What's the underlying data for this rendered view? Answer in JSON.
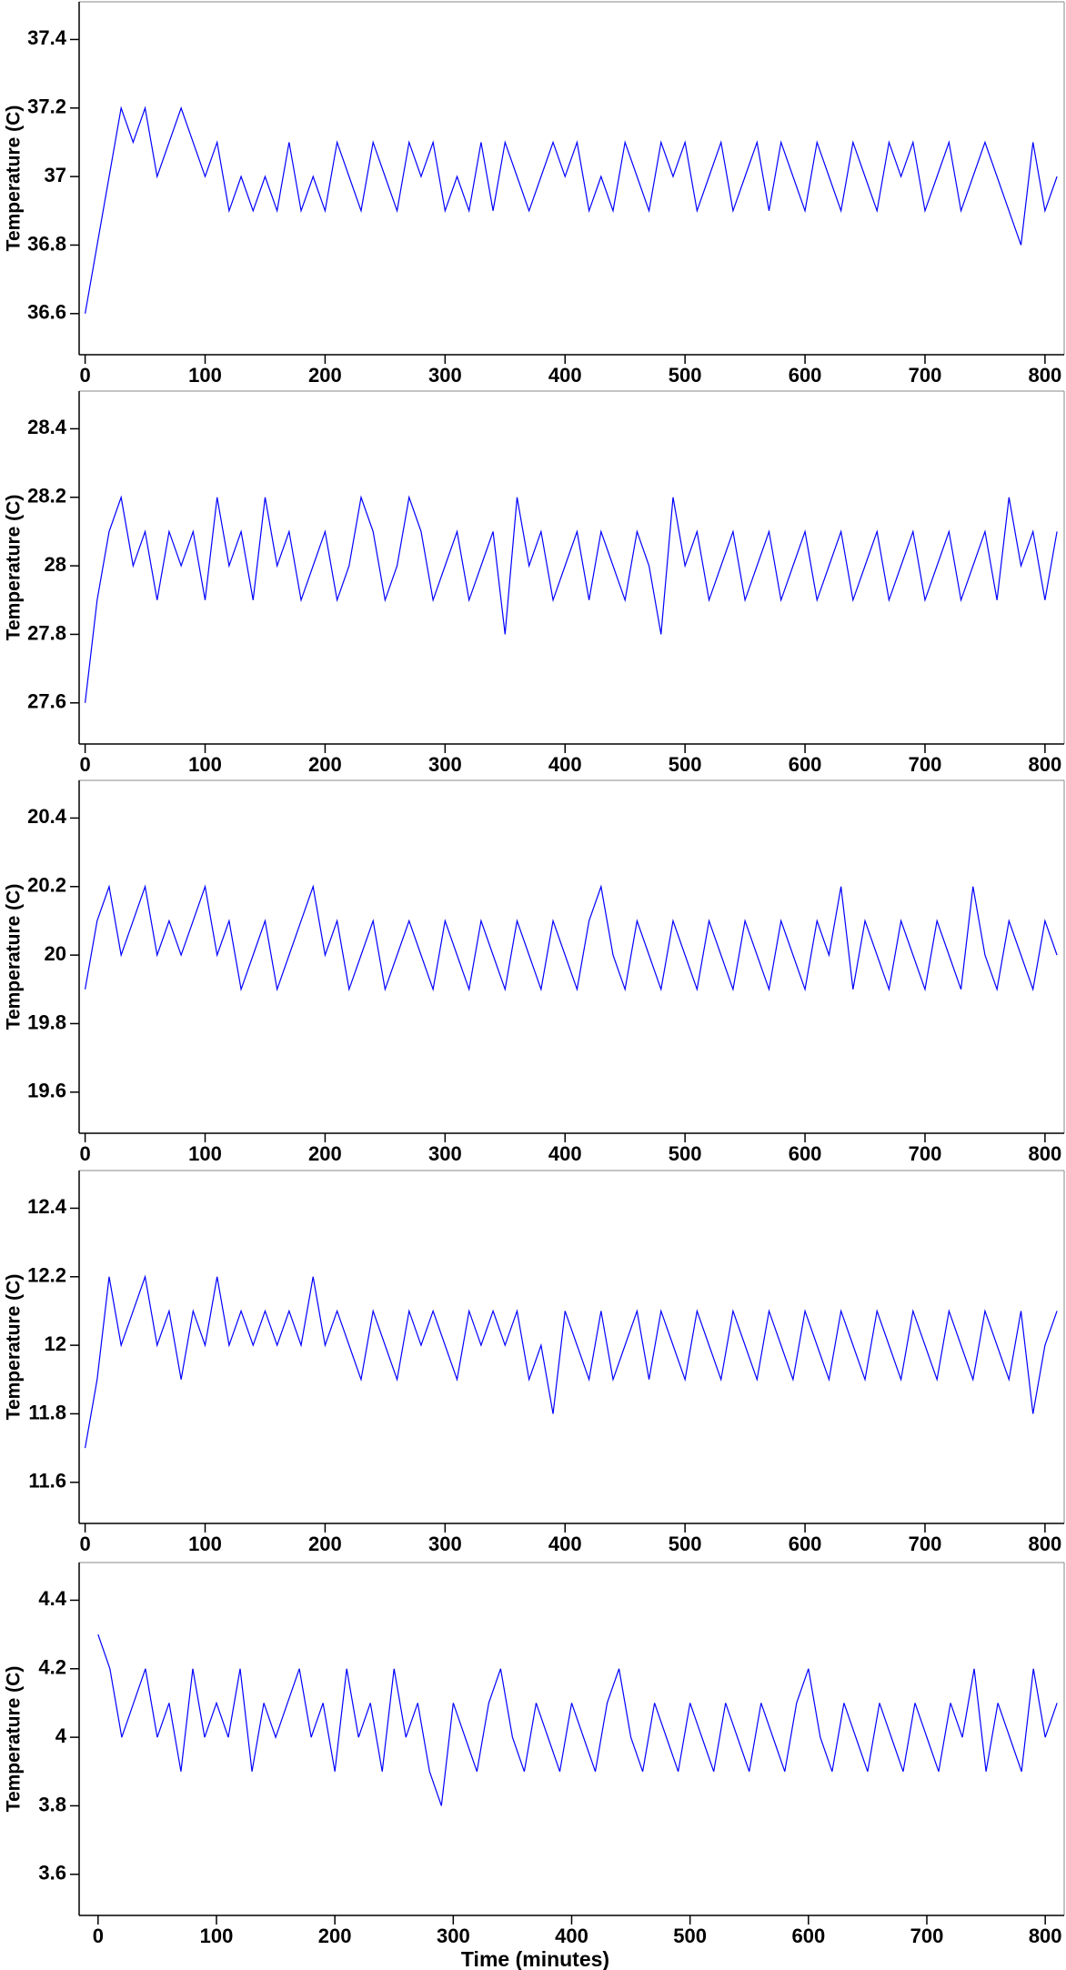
{
  "chart_data": [
    {
      "type": "line",
      "ylabel": "Temperature  (C)",
      "color": "#0000ff",
      "x": [
        0,
        10,
        20,
        30,
        40,
        50,
        60,
        70,
        80,
        90,
        100,
        110,
        120,
        130,
        140,
        150,
        160,
        170,
        180,
        190,
        200,
        210,
        220,
        230,
        240,
        250,
        260,
        270,
        280,
        290,
        300,
        310,
        320,
        330,
        340,
        350,
        360,
        370,
        380,
        390,
        400,
        410,
        420,
        430,
        440,
        450,
        460,
        470,
        480,
        490,
        500,
        510,
        520,
        530,
        540,
        550,
        560,
        570,
        580,
        590,
        600,
        610,
        620,
        630,
        640,
        650,
        660,
        670,
        680,
        690,
        700,
        710,
        720,
        730,
        740,
        750,
        760,
        770,
        780,
        790,
        800,
        810
      ],
      "values": [
        36.6,
        36.8,
        37.0,
        37.2,
        37.1,
        37.2,
        37.0,
        37.1,
        37.2,
        37.1,
        37.0,
        37.1,
        36.9,
        37.0,
        36.9,
        37.0,
        36.9,
        37.1,
        36.9,
        37.0,
        36.9,
        37.1,
        37.0,
        36.9,
        37.1,
        37.0,
        36.9,
        37.1,
        37.0,
        37.1,
        36.9,
        37.0,
        36.9,
        37.1,
        36.9,
        37.1,
        37.0,
        36.9,
        37.0,
        37.1,
        37.0,
        37.1,
        36.9,
        37.0,
        36.9,
        37.1,
        37.0,
        36.9,
        37.1,
        37.0,
        37.1,
        36.9,
        37.0,
        37.1,
        36.9,
        37.0,
        37.1,
        36.9,
        37.1,
        37.0,
        36.9,
        37.1,
        37.0,
        36.9,
        37.1,
        37.0,
        36.9,
        37.1,
        37.0,
        37.1,
        36.9,
        37.0,
        37.1,
        36.9,
        37.0,
        37.1,
        37.0,
        36.9,
        36.8,
        37.1,
        36.9,
        37.0
      ],
      "xlim": [
        -5,
        816
      ],
      "ylim": [
        36.48,
        37.51
      ],
      "xticks": [
        0,
        100,
        200,
        300,
        400,
        500,
        600,
        700,
        800
      ],
      "yticks": [
        36.6,
        36.8,
        37,
        37.2,
        37.4
      ]
    },
    {
      "type": "line",
      "ylabel": "Temperature  (C)",
      "color": "#0000ff",
      "x": [
        0,
        10,
        20,
        30,
        40,
        50,
        60,
        70,
        80,
        90,
        100,
        110,
        120,
        130,
        140,
        150,
        160,
        170,
        180,
        190,
        200,
        210,
        220,
        230,
        240,
        250,
        260,
        270,
        280,
        290,
        300,
        310,
        320,
        330,
        340,
        350,
        360,
        370,
        380,
        390,
        400,
        410,
        420,
        430,
        440,
        450,
        460,
        470,
        480,
        490,
        500,
        510,
        520,
        530,
        540,
        550,
        560,
        570,
        580,
        590,
        600,
        610,
        620,
        630,
        640,
        650,
        660,
        670,
        680,
        690,
        700,
        710,
        720,
        730,
        740,
        750,
        760,
        770,
        780,
        790,
        800,
        810
      ],
      "values": [
        27.6,
        27.9,
        28.1,
        28.2,
        28.0,
        28.1,
        27.9,
        28.1,
        28.0,
        28.1,
        27.9,
        28.2,
        28.0,
        28.1,
        27.9,
        28.2,
        28.0,
        28.1,
        27.9,
        28.0,
        28.1,
        27.9,
        28.0,
        28.2,
        28.1,
        27.9,
        28.0,
        28.2,
        28.1,
        27.9,
        28.0,
        28.1,
        27.9,
        28.0,
        28.1,
        27.8,
        28.2,
        28.0,
        28.1,
        27.9,
        28.0,
        28.1,
        27.9,
        28.1,
        28.0,
        27.9,
        28.1,
        28.0,
        27.8,
        28.2,
        28.0,
        28.1,
        27.9,
        28.0,
        28.1,
        27.9,
        28.0,
        28.1,
        27.9,
        28.0,
        28.1,
        27.9,
        28.0,
        28.1,
        27.9,
        28.0,
        28.1,
        27.9,
        28.0,
        28.1,
        27.9,
        28.0,
        28.1,
        27.9,
        28.0,
        28.1,
        27.9,
        28.2,
        28.0,
        28.1,
        27.9,
        28.1
      ],
      "xlim": [
        -5,
        816
      ],
      "ylim": [
        27.48,
        28.51
      ],
      "xticks": [
        0,
        100,
        200,
        300,
        400,
        500,
        600,
        700,
        800
      ],
      "yticks": [
        27.6,
        27.8,
        28,
        28.2,
        28.4
      ]
    },
    {
      "type": "line",
      "ylabel": "Temperature  (C)",
      "color": "#0000ff",
      "x": [
        0,
        10,
        20,
        30,
        40,
        50,
        60,
        70,
        80,
        90,
        100,
        110,
        120,
        130,
        140,
        150,
        160,
        170,
        180,
        190,
        200,
        210,
        220,
        230,
        240,
        250,
        260,
        270,
        280,
        290,
        300,
        310,
        320,
        330,
        340,
        350,
        360,
        370,
        380,
        390,
        400,
        410,
        420,
        430,
        440,
        450,
        460,
        470,
        480,
        490,
        500,
        510,
        520,
        530,
        540,
        550,
        560,
        570,
        580,
        590,
        600,
        610,
        620,
        630,
        640,
        650,
        660,
        670,
        680,
        690,
        700,
        710,
        720,
        730,
        740,
        750,
        760,
        770,
        780,
        790,
        800,
        810
      ],
      "values": [
        19.9,
        20.1,
        20.2,
        20.0,
        20.1,
        20.2,
        20.0,
        20.1,
        20.0,
        20.1,
        20.2,
        20.0,
        20.1,
        19.9,
        20.0,
        20.1,
        19.9,
        20.0,
        20.1,
        20.2,
        20.0,
        20.1,
        19.9,
        20.0,
        20.1,
        19.9,
        20.0,
        20.1,
        20.0,
        19.9,
        20.1,
        20.0,
        19.9,
        20.1,
        20.0,
        19.9,
        20.1,
        20.0,
        19.9,
        20.1,
        20.0,
        19.9,
        20.1,
        20.2,
        20.0,
        19.9,
        20.1,
        20.0,
        19.9,
        20.1,
        20.0,
        19.9,
        20.1,
        20.0,
        19.9,
        20.1,
        20.0,
        19.9,
        20.1,
        20.0,
        19.9,
        20.1,
        20.0,
        20.2,
        19.9,
        20.1,
        20.0,
        19.9,
        20.1,
        20.0,
        19.9,
        20.1,
        20.0,
        19.9,
        20.2,
        20.0,
        19.9,
        20.1,
        20.0,
        19.9,
        20.1,
        20.0
      ],
      "xlim": [
        -5,
        816
      ],
      "ylim": [
        19.48,
        20.51
      ],
      "xticks": [
        0,
        100,
        200,
        300,
        400,
        500,
        600,
        700,
        800
      ],
      "yticks": [
        19.6,
        19.8,
        20,
        20.2,
        20.4
      ]
    },
    {
      "type": "line",
      "ylabel": "Temperature  (C)",
      "color": "#0000ff",
      "x": [
        0,
        10,
        20,
        30,
        40,
        50,
        60,
        70,
        80,
        90,
        100,
        110,
        120,
        130,
        140,
        150,
        160,
        170,
        180,
        190,
        200,
        210,
        220,
        230,
        240,
        250,
        260,
        270,
        280,
        290,
        300,
        310,
        320,
        330,
        340,
        350,
        360,
        370,
        380,
        390,
        400,
        410,
        420,
        430,
        440,
        450,
        460,
        470,
        480,
        490,
        500,
        510,
        520,
        530,
        540,
        550,
        560,
        570,
        580,
        590,
        600,
        610,
        620,
        630,
        640,
        650,
        660,
        670,
        680,
        690,
        700,
        710,
        720,
        730,
        740,
        750,
        760,
        770,
        780,
        790,
        800,
        810
      ],
      "values": [
        11.7,
        11.9,
        12.2,
        12.0,
        12.1,
        12.2,
        12.0,
        12.1,
        11.9,
        12.1,
        12.0,
        12.2,
        12.0,
        12.1,
        12.0,
        12.1,
        12.0,
        12.1,
        12.0,
        12.2,
        12.0,
        12.1,
        12.0,
        11.9,
        12.1,
        12.0,
        11.9,
        12.1,
        12.0,
        12.1,
        12.0,
        11.9,
        12.1,
        12.0,
        12.1,
        12.0,
        12.1,
        11.9,
        12.0,
        11.8,
        12.1,
        12.0,
        11.9,
        12.1,
        11.9,
        12.0,
        12.1,
        11.9,
        12.1,
        12.0,
        11.9,
        12.1,
        12.0,
        11.9,
        12.1,
        12.0,
        11.9,
        12.1,
        12.0,
        11.9,
        12.1,
        12.0,
        11.9,
        12.1,
        12.0,
        11.9,
        12.1,
        12.0,
        11.9,
        12.1,
        12.0,
        11.9,
        12.1,
        12.0,
        11.9,
        12.1,
        12.0,
        11.9,
        12.1,
        11.8,
        12.0,
        12.1
      ],
      "xlim": [
        -5,
        816
      ],
      "ylim": [
        11.48,
        12.51
      ],
      "xticks": [
        0,
        100,
        200,
        300,
        400,
        500,
        600,
        700,
        800
      ],
      "yticks": [
        11.6,
        11.8,
        12,
        12.2,
        12.4
      ]
    },
    {
      "type": "line",
      "ylabel": "Temperature  (C)",
      "xlabel": "Time (minutes)",
      "color": "#0000ff",
      "x": [
        0,
        10,
        20,
        30,
        40,
        50,
        60,
        70,
        80,
        90,
        100,
        110,
        120,
        130,
        140,
        150,
        160,
        170,
        180,
        190,
        200,
        210,
        220,
        230,
        240,
        250,
        260,
        270,
        280,
        290,
        300,
        310,
        320,
        330,
        340,
        350,
        360,
        370,
        380,
        390,
        400,
        410,
        420,
        430,
        440,
        450,
        460,
        470,
        480,
        490,
        500,
        510,
        520,
        530,
        540,
        550,
        560,
        570,
        580,
        590,
        600,
        610,
        620,
        630,
        640,
        650,
        660,
        670,
        680,
        690,
        700,
        710,
        720,
        730,
        740,
        750,
        760,
        770,
        780,
        790,
        800,
        810
      ],
      "values": [
        4.3,
        4.2,
        4.0,
        4.1,
        4.2,
        4.0,
        4.1,
        3.9,
        4.2,
        4.0,
        4.1,
        4.0,
        4.2,
        3.9,
        4.1,
        4.0,
        4.1,
        4.2,
        4.0,
        4.1,
        3.9,
        4.2,
        4.0,
        4.1,
        3.9,
        4.2,
        4.0,
        4.1,
        3.9,
        3.8,
        4.1,
        4.0,
        3.9,
        4.1,
        4.2,
        4.0,
        3.9,
        4.1,
        4.0,
        3.9,
        4.1,
        4.0,
        3.9,
        4.1,
        4.2,
        4.0,
        3.9,
        4.1,
        4.0,
        3.9,
        4.1,
        4.0,
        3.9,
        4.1,
        4.0,
        3.9,
        4.1,
        4.0,
        3.9,
        4.1,
        4.2,
        4.0,
        3.9,
        4.1,
        4.0,
        3.9,
        4.1,
        4.0,
        3.9,
        4.1,
        4.0,
        3.9,
        4.1,
        4.0,
        4.2,
        3.9,
        4.1,
        4.0,
        3.9,
        4.2,
        4.0,
        4.1
      ],
      "xlim": [
        -16,
        816
      ],
      "ylim": [
        3.48,
        4.51
      ],
      "xticks": [
        0,
        100,
        200,
        300,
        400,
        500,
        600,
        700,
        800
      ],
      "yticks": [
        3.6,
        3.8,
        4,
        4.2,
        4.4
      ]
    }
  ]
}
